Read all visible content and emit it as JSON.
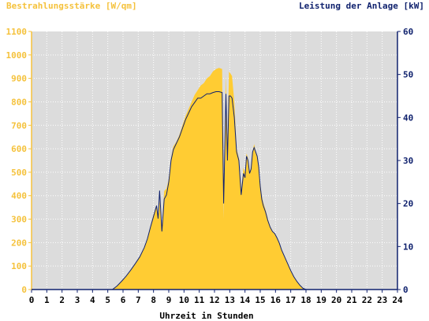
{
  "chart_data": {
    "type": "area",
    "title_left": "Bestrahlungsstärke [W/qm]",
    "title_right": "Leistung der Anlage [kW]",
    "xlabel": "Uhrzeit in Stunden",
    "xlim": [
      0,
      24
    ],
    "ylim_left": [
      0,
      1100
    ],
    "ylim_right": [
      0,
      60
    ],
    "x_ticks": [
      "0",
      "1",
      "2",
      "3",
      "4",
      "5",
      "6",
      "7",
      "8",
      "9",
      "10",
      "11",
      "12",
      "13",
      "14",
      "15",
      "16",
      "17",
      "18",
      "19",
      "20",
      "21",
      "22",
      "23",
      "24"
    ],
    "y_ticks_left": [
      "0",
      "100",
      "200",
      "300",
      "400",
      "500",
      "600",
      "700",
      "800",
      "900",
      "1000",
      "1100"
    ],
    "y_ticks_right": [
      "0",
      "10",
      "20",
      "30",
      "40",
      "50",
      "60"
    ],
    "grid": true,
    "colors": {
      "plot_bg": "#dcdcdc",
      "irradiance": "#ffcc33",
      "irradiance_axis": "#f5c23c",
      "power": "#10226e",
      "grid": "#ffffff"
    },
    "series": [
      {
        "axis": "left",
        "x": [
          0,
          5.3,
          5.6,
          5.9,
          6.2,
          6.5,
          6.8,
          7.1,
          7.4,
          7.6,
          7.8,
          8.0,
          8.2,
          8.3,
          8.4,
          8.55,
          8.7,
          8.85,
          9.0,
          9.15,
          9.3,
          9.5,
          9.7,
          9.9,
          10.1,
          10.3,
          10.5,
          10.7,
          10.9,
          11.1,
          11.3,
          11.5,
          11.7,
          11.9,
          12.1,
          12.3,
          12.5,
          12.6,
          12.75,
          12.85,
          12.95,
          13.05,
          13.15,
          13.3,
          13.45,
          13.6,
          13.75,
          13.9,
          14.0,
          14.1,
          14.2,
          14.3,
          14.4,
          14.5,
          14.6,
          14.7,
          14.8,
          14.9,
          15.0,
          15.1,
          15.2,
          15.35,
          15.5,
          15.65,
          15.8,
          15.95,
          16.1,
          16.25,
          16.4,
          16.6,
          16.8,
          17.0,
          17.2,
          17.4,
          17.6,
          17.8,
          18.0,
          18.2,
          18.4,
          18.6,
          18.8,
          19.0,
          19.2,
          19.5,
          24
        ],
        "y": [
          0,
          0,
          15,
          35,
          55,
          80,
          110,
          140,
          180,
          220,
          270,
          320,
          360,
          300,
          380,
          250,
          420,
          430,
          470,
          560,
          610,
          630,
          660,
          700,
          740,
          770,
          800,
          830,
          850,
          870,
          880,
          900,
          910,
          930,
          940,
          945,
          940,
          300,
          920,
          600,
          930,
          920,
          910,
          800,
          600,
          560,
          420,
          520,
          500,
          580,
          560,
          500,
          520,
          590,
          620,
          590,
          570,
          520,
          450,
          400,
          370,
          340,
          300,
          270,
          250,
          240,
          220,
          200,
          170,
          140,
          110,
          80,
          55,
          35,
          18,
          5,
          0,
          0,
          0,
          0,
          0,
          0,
          0,
          0,
          0
        ],
        "name": ""
      },
      {
        "axis": "right",
        "x": [
          0,
          5.3,
          5.6,
          5.9,
          6.2,
          6.5,
          6.8,
          7.1,
          7.4,
          7.6,
          7.8,
          8.0,
          8.2,
          8.3,
          8.4,
          8.55,
          8.7,
          8.85,
          9.0,
          9.15,
          9.3,
          9.5,
          9.7,
          9.9,
          10.1,
          10.3,
          10.5,
          10.7,
          10.9,
          11.1,
          11.3,
          11.5,
          11.7,
          11.9,
          12.1,
          12.3,
          12.5,
          12.6,
          12.75,
          12.85,
          12.95,
          13.05,
          13.15,
          13.3,
          13.45,
          13.6,
          13.75,
          13.9,
          14.0,
          14.1,
          14.2,
          14.3,
          14.4,
          14.5,
          14.6,
          14.7,
          14.8,
          14.9,
          15.0,
          15.1,
          15.2,
          15.35,
          15.5,
          15.65,
          15.8,
          15.95,
          16.1,
          16.25,
          16.4,
          16.6,
          16.8,
          17.0,
          17.2,
          17.4,
          17.6,
          17.8,
          18.0,
          18.2,
          18.4,
          18.6,
          18.8,
          19.0,
          19.2,
          19.5,
          24
        ],
        "y": [
          0,
          0,
          0.8,
          1.9,
          3.1,
          4.5,
          6.0,
          7.6,
          9.8,
          11.8,
          14.5,
          17.0,
          19.5,
          16.5,
          23.0,
          13.5,
          21.0,
          22.0,
          25.0,
          30.0,
          32.5,
          34.0,
          35.5,
          37.5,
          39.5,
          41.0,
          42.5,
          43.5,
          44.5,
          44.5,
          45.0,
          45.5,
          45.5,
          45.8,
          46.0,
          46.0,
          45.8,
          20.0,
          45.5,
          30.0,
          45.0,
          45.0,
          44.5,
          40.0,
          32.0,
          30.0,
          22.0,
          27.0,
          26.0,
          31.0,
          30.0,
          27.0,
          28.0,
          32.0,
          33.0,
          32.0,
          31.0,
          28.5,
          24.0,
          21.0,
          19.5,
          18.0,
          16.0,
          14.5,
          13.5,
          13.0,
          12.0,
          10.8,
          9.2,
          7.6,
          6.0,
          4.4,
          3.0,
          1.9,
          1.0,
          0.3,
          0,
          0,
          0,
          0,
          0,
          0,
          0,
          0,
          0
        ],
        "name": ""
      }
    ]
  }
}
